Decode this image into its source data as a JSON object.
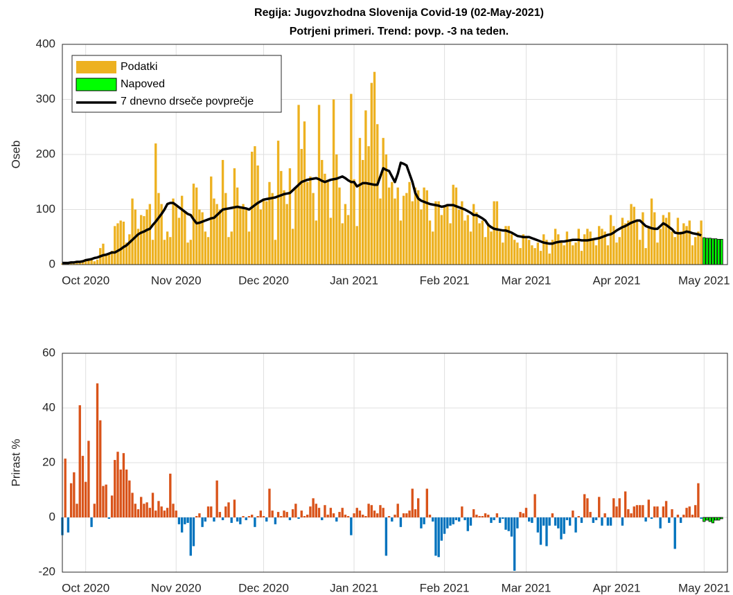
{
  "chart_data": [
    {
      "type": "bar",
      "title": "Regija: Jugovzhodna Slovenija Covid-19 (02-May-2021)",
      "subtitle": "Potrjeni primeri. Trend: povp. -3 na teden.",
      "ylabel": "Oseb",
      "xlim": [
        -8,
        220
      ],
      "ylim": [
        0,
        400
      ],
      "xticks": [
        {
          "value": 0,
          "label": "Oct 2020"
        },
        {
          "value": 31,
          "label": "Nov 2020"
        },
        {
          "value": 61,
          "label": "Dec 2020"
        },
        {
          "value": 92,
          "label": "Jan 2021"
        },
        {
          "value": 123,
          "label": "Feb 2021"
        },
        {
          "value": 151,
          "label": "Mar 2021"
        },
        {
          "value": 182,
          "label": "Apr 2021"
        },
        {
          "value": 212,
          "label": "May 2021"
        }
      ],
      "yticks": [
        0,
        100,
        200,
        300,
        400
      ],
      "grid": true,
      "legend": "upper left",
      "x": [
        -8,
        -7,
        -6,
        -5,
        -4,
        -3,
        -2,
        -1,
        0,
        1,
        2,
        3,
        4,
        5,
        6,
        7,
        8,
        9,
        10,
        11,
        12,
        13,
        14,
        15,
        16,
        17,
        18,
        19,
        20,
        21,
        22,
        23,
        24,
        25,
        26,
        27,
        28,
        29,
        30,
        31,
        32,
        33,
        34,
        35,
        36,
        37,
        38,
        39,
        40,
        41,
        42,
        43,
        44,
        45,
        46,
        47,
        48,
        49,
        50,
        51,
        52,
        53,
        54,
        55,
        56,
        57,
        58,
        59,
        60,
        61,
        62,
        63,
        64,
        65,
        66,
        67,
        68,
        69,
        70,
        71,
        72,
        73,
        74,
        75,
        76,
        77,
        78,
        79,
        80,
        81,
        82,
        83,
        84,
        85,
        86,
        87,
        88,
        89,
        90,
        91,
        92,
        93,
        94,
        95,
        96,
        97,
        98,
        99,
        100,
        101,
        102,
        103,
        104,
        105,
        106,
        107,
        108,
        109,
        110,
        111,
        112,
        113,
        114,
        115,
        116,
        117,
        118,
        119,
        120,
        121,
        122,
        123,
        124,
        125,
        126,
        127,
        128,
        129,
        130,
        131,
        132,
        133,
        134,
        135,
        136,
        137,
        138,
        139,
        140,
        141,
        142,
        143,
        144,
        145,
        146,
        147,
        148,
        149,
        150,
        151,
        152,
        153,
        154,
        155,
        156,
        157,
        158,
        159,
        160,
        161,
        162,
        163,
        164,
        165,
        166,
        167,
        168,
        169,
        170,
        171,
        172,
        173,
        174,
        175,
        176,
        177,
        178,
        179,
        180,
        181,
        182,
        183,
        184,
        185,
        186,
        187,
        188,
        189,
        190,
        191,
        192,
        193,
        194,
        195,
        196,
        197,
        198,
        199,
        200,
        201,
        202,
        203,
        204,
        205,
        206,
        207,
        208,
        209,
        210,
        211
      ],
      "series": [
        {
          "name": "Podatki",
          "color": "#edb120",
          "values": [
            2,
            3,
            3,
            4,
            2,
            3,
            6,
            8,
            10,
            8,
            12,
            6,
            9,
            30,
            38,
            20,
            20,
            25,
            70,
            75,
            80,
            78,
            40,
            55,
            120,
            100,
            65,
            90,
            88,
            100,
            110,
            45,
            220,
            130,
            110,
            45,
            60,
            50,
            120,
            110,
            85,
            125,
            95,
            40,
            45,
            147,
            140,
            100,
            95,
            60,
            50,
            160,
            120,
            110,
            100,
            190,
            130,
            50,
            60,
            175,
            140,
            105,
            110,
            100,
            60,
            205,
            215,
            180,
            100,
            120,
            115,
            150,
            130,
            45,
            225,
            170,
            135,
            110,
            175,
            65,
            140,
            290,
            210,
            260,
            150,
            160,
            130,
            80,
            290,
            190,
            165,
            150,
            85,
            300,
            200,
            140,
            75,
            110,
            90,
            310,
            155,
            70,
            230,
            190,
            280,
            215,
            330,
            350,
            255,
            120,
            230,
            200,
            140,
            150,
            120,
            140,
            80,
            125,
            130,
            150,
            115,
            140,
            135,
            100,
            140,
            135,
            80,
            60,
            115,
            115,
            90,
            105,
            110,
            75,
            145,
            140,
            100,
            115,
            80,
            90,
            60,
            110,
            95,
            75,
            80,
            50,
            75,
            60,
            115,
            115,
            60,
            40,
            70,
            70,
            55,
            45,
            40,
            30,
            55,
            50,
            45,
            35,
            30,
            40,
            25,
            55,
            45,
            20,
            45,
            65,
            55,
            40,
            35,
            60,
            45,
            35,
            40,
            65,
            25,
            55,
            65,
            60,
            45,
            35,
            70,
            65,
            60,
            35,
            90,
            70,
            40,
            50,
            85,
            75,
            80,
            110,
            105,
            80,
            45,
            95,
            30,
            70,
            120,
            95,
            40,
            65,
            90,
            85,
            95,
            60,
            50,
            85,
            60,
            75,
            70,
            80,
            35,
            50,
            60,
            80
          ]
        },
        {
          "name": "Napoved",
          "color": "#00ff00",
          "edgecolor": "#000000",
          "x": [
            212,
            213,
            214,
            215,
            216,
            217,
            218
          ],
          "values": [
            49,
            48,
            48,
            47,
            47,
            46,
            46
          ]
        },
        {
          "name": "7 dnevno drseče povprečje",
          "type": "line",
          "color": "#000000",
          "values": [
            3,
            3,
            3,
            4,
            4,
            5,
            5,
            6,
            8,
            9,
            10,
            12,
            13,
            15,
            17,
            18,
            20,
            22,
            22,
            25,
            28,
            32,
            35,
            40,
            45,
            50,
            55,
            58,
            60,
            63,
            65,
            72,
            78,
            85,
            92,
            100,
            110,
            112,
            112,
            108,
            104,
            100,
            96,
            92,
            90,
            82,
            75,
            76,
            78,
            80,
            82,
            84,
            85,
            90,
            95,
            100,
            101,
            102,
            103,
            104,
            105,
            104,
            103,
            102,
            100,
            104,
            108,
            112,
            115,
            118,
            119,
            120,
            121,
            122,
            124,
            126,
            128,
            129,
            130,
            135,
            140,
            145,
            150,
            152,
            154,
            155,
            156,
            157,
            155,
            152,
            150,
            152,
            154,
            155,
            156,
            158,
            160,
            157,
            153,
            150,
            150,
            142,
            145,
            148,
            148,
            147,
            146,
            145,
            145,
            160,
            175,
            172,
            170,
            160,
            150,
            165,
            185,
            183,
            180,
            165,
            150,
            130,
            120,
            116,
            114,
            112,
            110,
            109,
            108,
            107,
            105,
            106,
            108,
            108,
            108,
            106,
            104,
            102,
            100,
            97,
            94,
            90,
            90,
            87,
            84,
            80,
            72,
            68,
            65,
            64,
            63,
            62,
            62,
            60,
            58,
            55,
            52,
            51,
            50,
            50,
            50,
            48,
            46,
            44,
            42,
            40,
            39,
            38,
            38,
            40,
            41,
            42,
            42,
            43,
            44,
            45,
            45,
            45,
            44,
            44,
            44,
            45,
            46,
            47,
            48,
            50,
            52,
            54,
            55,
            58,
            62,
            65,
            68,
            70,
            73,
            76,
            78,
            80,
            80,
            75,
            70,
            68,
            66,
            65,
            65,
            70,
            75,
            72,
            68,
            64,
            58,
            57,
            57,
            58,
            60,
            59,
            57,
            56,
            55,
            53
          ]
        }
      ]
    },
    {
      "type": "bar",
      "ylabel": "Prirast %",
      "xlim": [
        -8,
        220
      ],
      "ylim": [
        -20,
        60
      ],
      "xticks": [
        {
          "value": 0,
          "label": "Oct 2020"
        },
        {
          "value": 31,
          "label": "Nov 2020"
        },
        {
          "value": 61,
          "label": "Dec 2020"
        },
        {
          "value": 92,
          "label": "Jan 2021"
        },
        {
          "value": 123,
          "label": "Feb 2021"
        },
        {
          "value": 151,
          "label": "Mar 2021"
        },
        {
          "value": 182,
          "label": "Apr 2021"
        },
        {
          "value": 212,
          "label": "May 2021"
        }
      ],
      "yticks": [
        -20,
        0,
        20,
        40,
        60
      ],
      "grid": true,
      "x": [
        -8,
        -7,
        -6,
        -5,
        -4,
        -3,
        -2,
        -1,
        0,
        1,
        2,
        3,
        4,
        5,
        6,
        7,
        8,
        9,
        10,
        11,
        12,
        13,
        14,
        15,
        16,
        17,
        18,
        19,
        20,
        21,
        22,
        23,
        24,
        25,
        26,
        27,
        28,
        29,
        30,
        31,
        32,
        33,
        34,
        35,
        36,
        37,
        38,
        39,
        40,
        41,
        42,
        43,
        44,
        45,
        46,
        47,
        48,
        49,
        50,
        51,
        52,
        53,
        54,
        55,
        56,
        57,
        58,
        59,
        60,
        61,
        62,
        63,
        64,
        65,
        66,
        67,
        68,
        69,
        70,
        71,
        72,
        73,
        74,
        75,
        76,
        77,
        78,
        79,
        80,
        81,
        82,
        83,
        84,
        85,
        86,
        87,
        88,
        89,
        90,
        91,
        92,
        93,
        94,
        95,
        96,
        97,
        98,
        99,
        100,
        101,
        102,
        103,
        104,
        105,
        106,
        107,
        108,
        109,
        110,
        111,
        112,
        113,
        114,
        115,
        116,
        117,
        118,
        119,
        120,
        121,
        122,
        123,
        124,
        125,
        126,
        127,
        128,
        129,
        130,
        131,
        132,
        133,
        134,
        135,
        136,
        137,
        138,
        139,
        140,
        141,
        142,
        143,
        144,
        145,
        146,
        147,
        148,
        149,
        150,
        151,
        152,
        153,
        154,
        155,
        156,
        157,
        158,
        159,
        160,
        161,
        162,
        163,
        164,
        165,
        166,
        167,
        168,
        169,
        170,
        171,
        172,
        173,
        174,
        175,
        176,
        177,
        178,
        179,
        180,
        181,
        182,
        183,
        184,
        185,
        186,
        187,
        188,
        189,
        190,
        191,
        192,
        193,
        194,
        195,
        196,
        197,
        198,
        199,
        200,
        201,
        202,
        203,
        204,
        205,
        206,
        207,
        208,
        209,
        210,
        211
      ],
      "series": [
        {
          "color": "#d95319",
          "negative_color": "#0072bd",
          "values": [
            -6.5,
            21.5,
            -5.5,
            12.5,
            16.5,
            5,
            41,
            22.5,
            13,
            28,
            -3.5,
            5,
            49,
            35.5,
            11.5,
            12,
            -0.5,
            8,
            21,
            24,
            17.5,
            23.5,
            17.5,
            13.5,
            9,
            5,
            3,
            7.5,
            5,
            5.5,
            3.5,
            9,
            2.5,
            6,
            4,
            2.5,
            3.5,
            16,
            5,
            2.5,
            -2.5,
            -5.5,
            -2.5,
            -2,
            -14,
            -10.5,
            0.5,
            1.5,
            -3.5,
            -1.5,
            4,
            4,
            -1.5,
            13.5,
            2,
            -1,
            4,
            5.5,
            -2,
            6.5,
            -1.5,
            -2.5,
            0.5,
            -1,
            0.5,
            1,
            -3.5,
            0.5,
            2.5,
            0.5,
            -1.5,
            10.5,
            2.5,
            -2.5,
            2,
            0.5,
            2.5,
            2,
            -1,
            3,
            5,
            -0.5,
            2.5,
            0.5,
            1,
            4,
            7,
            5,
            3.5,
            -1,
            4.5,
            1,
            3.5,
            1.5,
            -1.5,
            2,
            3.5,
            1,
            0.5,
            -6.5,
            1.5,
            3.5,
            2.5,
            1,
            0.5,
            5,
            4.5,
            2.5,
            1.5,
            4.5,
            3.5,
            -14,
            0.5,
            -1.5,
            1,
            5,
            -3.5,
            1.5,
            1.5,
            2.5,
            10.5,
            3,
            7,
            -4,
            -2.5,
            10.5,
            1,
            -1.5,
            -14,
            -14.5,
            -8.5,
            -6,
            -4,
            -3,
            -2.5,
            -1,
            -1.5,
            4,
            -1,
            -5,
            -3,
            3,
            1,
            0.5,
            0.5,
            1.5,
            1,
            -2,
            -1,
            1.5,
            -2,
            -0.5,
            -4.5,
            -5,
            -7,
            -19.5,
            -4,
            2,
            1.5,
            3.5,
            -1.5,
            -2,
            8.5,
            -5.5,
            -10,
            -3,
            -10.5,
            -3,
            1.5,
            -3,
            -4,
            -8,
            -6,
            -1,
            -3,
            2.5,
            -5.5,
            0.5,
            -2,
            8.5,
            7,
            2,
            -2,
            -1,
            7.5,
            -3,
            1.5,
            -3,
            -3,
            7,
            4,
            7,
            -3,
            9.5,
            3,
            1.5,
            4,
            4.5,
            4.5,
            4.5,
            -1.5,
            6.5,
            -0.5,
            4,
            4,
            -4,
            4,
            6,
            -2,
            3,
            -11.5,
            1,
            -2,
            1,
            3.5,
            4,
            1,
            4.5,
            12.5,
            -0.5
          ]
        },
        {
          "color": "#00ff00",
          "edgecolor": "#000000",
          "x": [
            212,
            213,
            214,
            215,
            216,
            217,
            218
          ],
          "values": [
            -1.5,
            -1,
            -1.5,
            -2,
            -1,
            -1,
            -0.5
          ]
        }
      ]
    }
  ]
}
